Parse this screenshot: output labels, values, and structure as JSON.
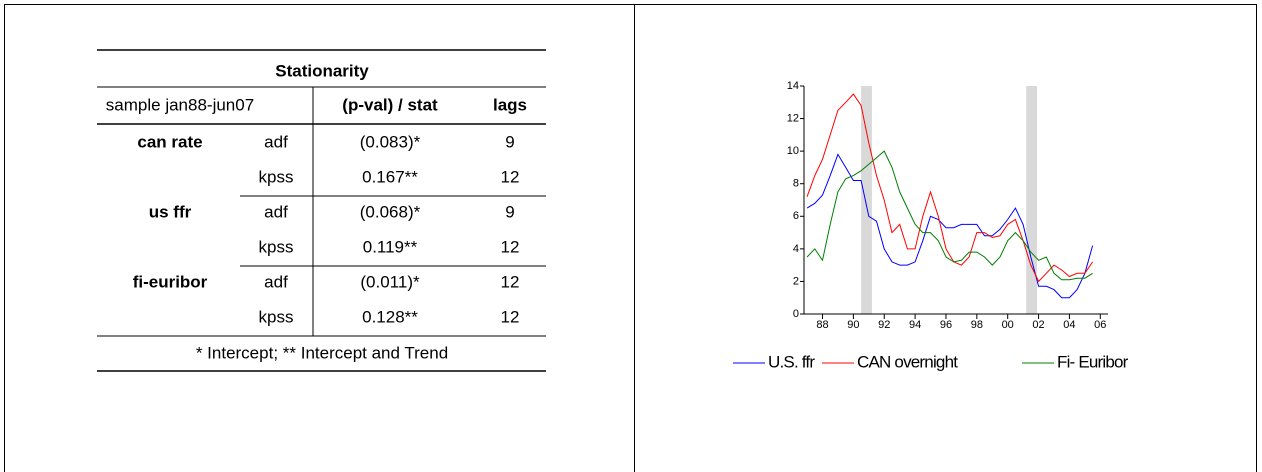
{
  "table": {
    "title": "Stationarity",
    "header": [
      "sample jan88-jun07",
      "(p-val) / stat",
      "lags"
    ],
    "groups": [
      {
        "name": "can rate",
        "rows": [
          [
            "adf",
            "(0.083)*",
            9
          ],
          [
            "kpss",
            "0.167**",
            12
          ]
        ]
      },
      {
        "name": "us ffr",
        "rows": [
          [
            "adf",
            "(0.068)*",
            9
          ],
          [
            "kpss",
            "0.119**",
            12
          ]
        ]
      },
      {
        "name": "fi-euribor",
        "rows": [
          [
            "adf",
            "(0.011)*",
            12
          ],
          [
            "kpss",
            "0.128**",
            12
          ]
        ]
      }
    ],
    "footnote": "* Intercept; ** Intercept and Trend"
  },
  "chart_data": {
    "type": "line",
    "x": [
      1987,
      1987.5,
      1988,
      1988.5,
      1989,
      1989.5,
      1990,
      1990.5,
      1991,
      1991.5,
      1992,
      1992.5,
      1993,
      1993.5,
      1994,
      1994.5,
      1995,
      1995.5,
      1996,
      1996.5,
      1997,
      1997.5,
      1998,
      1998.5,
      1999,
      1999.5,
      2000,
      2000.5,
      2001,
      2001.5,
      2002,
      2002.5,
      2003,
      2003.5,
      2004,
      2004.5,
      2005,
      2005.5
    ],
    "series": [
      {
        "name": "U.S. ffr",
        "color": "#0000ff",
        "values": [
          6.5,
          6.8,
          7.3,
          8.5,
          9.8,
          9.0,
          8.2,
          8.2,
          6.0,
          5.7,
          4.0,
          3.2,
          3.0,
          3.0,
          3.2,
          4.5,
          6.0,
          5.8,
          5.3,
          5.3,
          5.5,
          5.5,
          5.5,
          4.8,
          4.8,
          5.2,
          5.8,
          6.5,
          5.5,
          3.5,
          1.7,
          1.7,
          1.5,
          1.0,
          1.0,
          1.5,
          2.5,
          4.2
        ]
      },
      {
        "name": "CAN overnight",
        "color": "#ff0000",
        "values": [
          7.2,
          8.5,
          9.5,
          11.0,
          12.5,
          13.0,
          13.5,
          12.8,
          10.5,
          8.5,
          7.0,
          5.0,
          5.5,
          4.0,
          4.0,
          6.0,
          7.5,
          6.0,
          4.0,
          3.2,
          3.0,
          3.5,
          5.0,
          5.0,
          4.7,
          4.8,
          5.5,
          5.8,
          4.5,
          3.0,
          2.0,
          2.5,
          3.0,
          2.7,
          2.3,
          2.5,
          2.5,
          3.2
        ]
      },
      {
        "name": "Fi- Euribor",
        "color": "#008000",
        "values": [
          3.5,
          4.0,
          3.3,
          5.5,
          7.5,
          8.3,
          8.5,
          8.8,
          9.2,
          9.6,
          10.0,
          9.0,
          7.5,
          6.5,
          5.5,
          5.0,
          5.0,
          4.5,
          3.5,
          3.2,
          3.3,
          3.8,
          3.8,
          3.5,
          3.0,
          3.5,
          4.5,
          5.0,
          4.5,
          3.8,
          3.3,
          3.5,
          2.5,
          2.1,
          2.1,
          2.2,
          2.2,
          2.5
        ]
      }
    ],
    "shading": [
      [
        1990.5,
        1991.2
      ],
      [
        2001.2,
        2001.9
      ]
    ],
    "shading_color": "#d9d9d9",
    "xlim": [
      1986.8,
      2006.5
    ],
    "xticks": [
      {
        "value": 1988,
        "label": "88"
      },
      {
        "value": 1990,
        "label": "90"
      },
      {
        "value": 1992,
        "label": "92"
      },
      {
        "value": 1994,
        "label": "94"
      },
      {
        "value": 1996,
        "label": "96"
      },
      {
        "value": 1998,
        "label": "98"
      },
      {
        "value": 2000,
        "label": "00"
      },
      {
        "value": 2002,
        "label": "02"
      },
      {
        "value": 2004,
        "label": "04"
      },
      {
        "value": 2006,
        "label": "06"
      }
    ],
    "ylim": [
      0,
      14
    ],
    "yticks": [
      0,
      2,
      4,
      6,
      8,
      10,
      12,
      14
    ],
    "grid": false,
    "legend": "bottom"
  }
}
